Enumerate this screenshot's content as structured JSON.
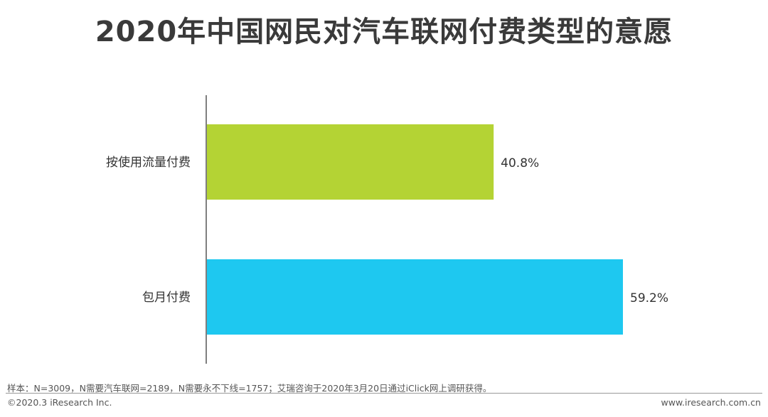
{
  "chart_data": {
    "type": "bar",
    "orientation": "horizontal",
    "title": "2020年中国网民对汽车联网付费类型的意愿",
    "categories": [
      "按使用流量付费",
      "包月付费"
    ],
    "values": [
      40.8,
      59.2
    ],
    "value_labels": [
      "40.8%",
      "59.2%"
    ],
    "colors": [
      "#b4d334",
      "#1ec8f0"
    ],
    "xlim": [
      0,
      80
    ],
    "grid": false,
    "legend": "none"
  },
  "footer": {
    "note": "样本：N=3009，N需要汽车联网=2189，N需要永不下线=1757；艾瑞咨询于2020年3月20日通过iClick网上调研获得。",
    "copyright": "©2020.3 iResearch Inc.",
    "website": "www.iresearch.com.cn"
  }
}
